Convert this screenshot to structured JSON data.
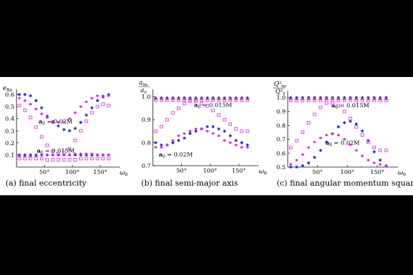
{
  "colors": {
    "blue": "#1a1acc",
    "magenta": "#dd22dd",
    "axis": "#000000"
  },
  "chart_data": [
    {
      "type": "scatter",
      "caption": "(a) final eccentricity",
      "ylabel": {
        "base": "e",
        "sub": "fin"
      },
      "xlabel": {
        "base": "ω",
        "sub": "0"
      },
      "xlim": [
        0,
        180
      ],
      "ylim": [
        0,
        0.62
      ],
      "xticks": [
        50,
        100,
        150
      ],
      "xtick_labels": [
        "50°",
        "100°",
        "150°"
      ],
      "yticks": [
        0.1,
        0.2,
        0.3,
        0.4,
        0.5,
        0.6
      ],
      "ytick_labels": [
        "0.1",
        "0.2",
        "0.3",
        "0.4",
        "0.5",
        "0.6"
      ],
      "annotations": [
        {
          "text": "a",
          "sub": "0",
          "rest": " = 0.02M",
          "x": 70,
          "y": 0.36
        },
        {
          "text": "a",
          "sub": "0",
          "rest": " = 0.015M",
          "x": 70,
          "y": 0.12
        }
      ],
      "series": [
        {
          "color": "blue",
          "marker": "star",
          "x": [
            5,
            15,
            25,
            35,
            45,
            55,
            65,
            75,
            85,
            95,
            105,
            115,
            125,
            135,
            145,
            155,
            165
          ],
          "y": [
            0.6,
            0.6,
            0.59,
            0.55,
            0.49,
            0.42,
            0.37,
            0.34,
            0.31,
            0.3,
            0.32,
            0.37,
            0.43,
            0.49,
            0.55,
            0.58,
            0.6
          ]
        },
        {
          "color": "magenta",
          "marker": "dot",
          "x": [
            5,
            15,
            25,
            35,
            45,
            55,
            65,
            75,
            85,
            95,
            105,
            115,
            125,
            135,
            145,
            155,
            165
          ],
          "y": [
            0.57,
            0.55,
            0.52,
            0.48,
            0.44,
            0.41,
            0.38,
            0.37,
            0.37,
            0.4,
            0.45,
            0.5,
            0.54,
            0.57,
            0.59,
            0.59,
            0.59
          ]
        },
        {
          "color": "magenta",
          "marker": "square",
          "x": [
            5,
            15,
            25,
            35,
            45,
            55,
            65,
            75,
            85,
            95,
            105,
            115,
            125,
            135,
            145,
            155,
            165
          ],
          "y": [
            0.51,
            0.47,
            0.41,
            0.33,
            0.25,
            0.18,
            0.13,
            0.11,
            0.12,
            0.15,
            0.22,
            0.3,
            0.38,
            0.45,
            0.5,
            0.52,
            0.51
          ]
        },
        {
          "color": "blue",
          "marker": "star",
          "x": [
            5,
            15,
            25,
            35,
            45,
            55,
            65,
            75,
            85,
            95,
            105,
            115,
            125,
            135,
            145,
            155,
            165
          ],
          "y": [
            0.1,
            0.1,
            0.1,
            0.1,
            0.1,
            0.1,
            0.1,
            0.1,
            0.1,
            0.1,
            0.1,
            0.1,
            0.1,
            0.1,
            0.1,
            0.1,
            0.1
          ]
        },
        {
          "color": "magenta",
          "marker": "dot",
          "x": [
            5,
            15,
            25,
            35,
            45,
            55,
            65,
            75,
            85,
            95,
            105,
            115,
            125,
            135,
            145,
            155,
            165
          ],
          "y": [
            0.09,
            0.09,
            0.09,
            0.09,
            0.1,
            0.1,
            0.1,
            0.1,
            0.1,
            0.1,
            0.11,
            0.11,
            0.11,
            0.11,
            0.1,
            0.1,
            0.1
          ]
        },
        {
          "color": "magenta",
          "marker": "square",
          "x": [
            5,
            15,
            25,
            35,
            45,
            55,
            65,
            75,
            85,
            95,
            105,
            115,
            125,
            135,
            145,
            155,
            165
          ],
          "y": [
            0.07,
            0.07,
            0.07,
            0.07,
            0.07,
            0.06,
            0.06,
            0.06,
            0.06,
            0.06,
            0.06,
            0.07,
            0.07,
            0.07,
            0.07,
            0.07,
            0.07
          ]
        }
      ]
    },
    {
      "type": "scatter",
      "caption": "(b) final semi-major axis",
      "ylabel": {
        "num": "a",
        "numsub": "fin",
        "den": "a",
        "densub": "0"
      },
      "xlabel": {
        "base": "ω",
        "sub": "0"
      },
      "xlim": [
        0,
        180
      ],
      "ylim": [
        0.7,
        1.02
      ],
      "xticks": [
        50,
        100,
        150
      ],
      "xtick_labels": [
        "50°",
        "100°",
        "150°"
      ],
      "yticks": [
        0.7,
        0.8,
        0.9,
        1.0
      ],
      "ytick_labels": [
        "0.7",
        "0.8",
        "0.9",
        "1.0"
      ],
      "annotations": [
        {
          "text": "a",
          "sub": "0",
          "rest": " = 0.015M",
          "x": 105,
          "y": 0.955
        },
        {
          "text": "a",
          "sub": "0",
          "rest": " = 0.02M",
          "x": 40,
          "y": 0.74
        }
      ],
      "series": [
        {
          "color": "blue",
          "marker": "star",
          "x": [
            5,
            15,
            25,
            35,
            45,
            55,
            65,
            75,
            85,
            95,
            105,
            115,
            125,
            135,
            145,
            155,
            165
          ],
          "y": [
            0.8,
            0.79,
            0.79,
            0.8,
            0.81,
            0.82,
            0.84,
            0.85,
            0.86,
            0.87,
            0.87,
            0.86,
            0.85,
            0.83,
            0.81,
            0.8,
            0.79
          ]
        },
        {
          "color": "magenta",
          "marker": "dot",
          "x": [
            5,
            15,
            25,
            35,
            45,
            55,
            65,
            75,
            85,
            95,
            105,
            115,
            125,
            135,
            145,
            155,
            165
          ],
          "y": [
            0.78,
            0.78,
            0.79,
            0.81,
            0.83,
            0.84,
            0.85,
            0.86,
            0.86,
            0.85,
            0.84,
            0.83,
            0.81,
            0.8,
            0.79,
            0.78,
            0.78
          ]
        },
        {
          "color": "magenta",
          "marker": "square",
          "x": [
            5,
            15,
            25,
            35,
            45,
            55,
            65,
            75,
            85,
            95,
            105,
            115,
            125,
            135,
            145,
            155,
            165
          ],
          "y": [
            0.85,
            0.87,
            0.9,
            0.93,
            0.95,
            0.97,
            0.98,
            0.98,
            0.97,
            0.96,
            0.94,
            0.92,
            0.9,
            0.88,
            0.86,
            0.85,
            0.85
          ]
        },
        {
          "color": "blue",
          "marker": "star",
          "x": [
            5,
            15,
            25,
            35,
            45,
            55,
            65,
            75,
            85,
            95,
            105,
            115,
            125,
            135,
            145,
            155,
            165
          ],
          "y": [
            0.995,
            0.995,
            0.995,
            0.995,
            0.995,
            0.995,
            0.995,
            0.995,
            0.995,
            0.995,
            0.995,
            0.995,
            0.995,
            0.995,
            0.995,
            0.995,
            0.995
          ]
        },
        {
          "color": "magenta",
          "marker": "dot",
          "x": [
            5,
            15,
            25,
            35,
            45,
            55,
            65,
            75,
            85,
            95,
            105,
            115,
            125,
            135,
            145,
            155,
            165
          ],
          "y": [
            0.99,
            0.99,
            0.99,
            0.99,
            0.99,
            0.99,
            0.99,
            0.99,
            0.99,
            0.99,
            0.99,
            0.99,
            0.99,
            0.99,
            0.99,
            0.99,
            0.99
          ]
        },
        {
          "color": "magenta",
          "marker": "square",
          "x": [
            5,
            15,
            25,
            35,
            45,
            55,
            65,
            75,
            85,
            95,
            105,
            115,
            125,
            135,
            145,
            155,
            165
          ],
          "y": [
            0.985,
            0.985,
            0.985,
            0.985,
            0.985,
            0.985,
            0.985,
            0.985,
            0.985,
            0.985,
            0.985,
            0.985,
            0.985,
            0.985,
            0.985,
            0.985,
            0.985
          ]
        }
      ]
    },
    {
      "type": "scatter",
      "caption": "(c) final angular momentum squared",
      "ylabel": {
        "num": "Q",
        "numsup": "2",
        "numsub": "fin",
        "den": "Q",
        "densup": "2",
        "densub": "0"
      },
      "xlabel": {
        "base": "ω",
        "sub": "0"
      },
      "xlim": [
        0,
        180
      ],
      "ylim": [
        0.5,
        1.03
      ],
      "xticks": [
        50,
        100,
        150
      ],
      "xtick_labels": [
        "50°",
        "100°",
        "150°"
      ],
      "yticks": [
        0.5,
        0.6,
        0.7,
        0.8,
        0.9,
        1.0
      ],
      "ytick_labels": [
        "0.5",
        "0.6",
        "0.7",
        "0.8",
        "0.9",
        "1.0"
      ],
      "annotations": [
        {
          "text": "a",
          "sub": "0",
          "rest": " = 0.015M",
          "x": 105,
          "y": 0.93
        },
        {
          "text": "a",
          "sub": "0",
          "rest": " = 0.02M",
          "x": 92,
          "y": 0.66
        }
      ],
      "series": [
        {
          "color": "blue",
          "marker": "star",
          "x": [
            5,
            15,
            25,
            35,
            45,
            55,
            65,
            75,
            85,
            95,
            105,
            115,
            125,
            135,
            145,
            155,
            165
          ],
          "y": [
            0.5,
            0.5,
            0.51,
            0.53,
            0.57,
            0.62,
            0.68,
            0.74,
            0.79,
            0.82,
            0.83,
            0.81,
            0.76,
            0.69,
            0.61,
            0.55,
            0.51
          ]
        },
        {
          "color": "magenta",
          "marker": "dot",
          "x": [
            5,
            15,
            25,
            35,
            45,
            55,
            65,
            75,
            85,
            95,
            105,
            115,
            125,
            135,
            145,
            155,
            165
          ],
          "y": [
            0.52,
            0.55,
            0.59,
            0.64,
            0.68,
            0.71,
            0.73,
            0.74,
            0.73,
            0.7,
            0.66,
            0.62,
            0.58,
            0.55,
            0.53,
            0.52,
            0.51
          ]
        },
        {
          "color": "magenta",
          "marker": "square",
          "x": [
            5,
            15,
            25,
            35,
            45,
            55,
            65,
            75,
            85,
            95,
            105,
            115,
            125,
            135,
            145,
            155,
            165
          ],
          "y": [
            0.64,
            0.69,
            0.75,
            0.82,
            0.88,
            0.93,
            0.96,
            0.96,
            0.94,
            0.9,
            0.85,
            0.79,
            0.73,
            0.68,
            0.64,
            0.62,
            0.62
          ]
        },
        {
          "color": "blue",
          "marker": "star",
          "x": [
            5,
            15,
            25,
            35,
            45,
            55,
            65,
            75,
            85,
            95,
            105,
            115,
            125,
            135,
            145,
            155,
            165
          ],
          "y": [
            1.0,
            1.0,
            1.0,
            1.0,
            1.0,
            1.0,
            1.0,
            1.0,
            1.0,
            1.0,
            1.0,
            1.0,
            1.0,
            1.0,
            1.0,
            1.0,
            1.0
          ]
        },
        {
          "color": "magenta",
          "marker": "dot",
          "x": [
            5,
            15,
            25,
            35,
            45,
            55,
            65,
            75,
            85,
            95,
            105,
            115,
            125,
            135,
            145,
            155,
            165
          ],
          "y": [
            0.99,
            0.99,
            0.99,
            0.99,
            0.99,
            0.99,
            0.99,
            0.99,
            0.99,
            0.99,
            0.99,
            0.99,
            0.99,
            0.99,
            0.99,
            0.99,
            0.99
          ]
        },
        {
          "color": "magenta",
          "marker": "square",
          "x": [
            5,
            15,
            25,
            35,
            45,
            55,
            65,
            75,
            85,
            95,
            105,
            115,
            125,
            135,
            145,
            155,
            165
          ],
          "y": [
            0.98,
            0.98,
            0.98,
            0.98,
            0.98,
            0.98,
            0.98,
            0.98,
            0.98,
            0.98,
            0.98,
            0.98,
            0.98,
            0.98,
            0.98,
            0.98,
            0.98
          ]
        }
      ]
    }
  ]
}
